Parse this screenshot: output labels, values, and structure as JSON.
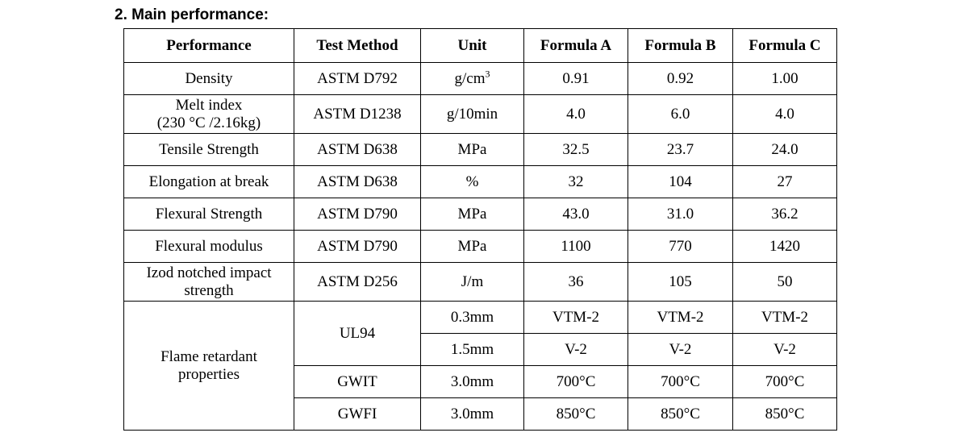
{
  "heading": "2. Main performance:",
  "columns": [
    "Performance",
    "Test Method",
    "Unit",
    "Formula A",
    "Formula B",
    "Formula C"
  ],
  "rows": [
    {
      "performance": "Density",
      "method": "ASTM D792",
      "unit": "g/cm",
      "unit_sup": "3",
      "a": "0.91",
      "b": "0.92",
      "c": "1.00"
    },
    {
      "performance_line1": "Melt index",
      "performance_line2": "(230 °C /2.16kg)",
      "method": "ASTM D1238",
      "unit": "g/10min",
      "a": "4.0",
      "b": "6.0",
      "c": "4.0"
    },
    {
      "performance": "Tensile Strength",
      "method": "ASTM D638",
      "unit": "MPa",
      "a": "32.5",
      "b": "23.7",
      "c": "24.0"
    },
    {
      "performance": "Elongation at break",
      "method": "ASTM D638",
      "unit": "%",
      "a": "32",
      "b": "104",
      "c": "27"
    },
    {
      "performance": "Flexural Strength",
      "method": "ASTM D790",
      "unit": "MPa",
      "a": "43.0",
      "b": "31.0",
      "c": "36.2"
    },
    {
      "performance": "Flexural modulus",
      "method": "ASTM D790",
      "unit": "MPa",
      "a": "1100",
      "b": "770",
      "c": "1420"
    },
    {
      "performance_line1": "Izod notched impact",
      "performance_line2": "strength",
      "method": "ASTM D256",
      "unit": "J/m",
      "a": "36",
      "b": "105",
      "c": "50"
    }
  ],
  "flame": {
    "label_line1": "Flame retardant",
    "label_line2": "properties",
    "ul94": {
      "method": "UL94",
      "rows": [
        {
          "unit": "0.3mm",
          "a": "VTM-2",
          "b": "VTM-2",
          "c": "VTM-2"
        },
        {
          "unit": "1.5mm",
          "a": "V-2",
          "b": "V-2",
          "c": "V-2"
        }
      ]
    },
    "gwit": {
      "method": "GWIT",
      "unit": "3.0mm",
      "a": "700°C",
      "b": "700°C",
      "c": "700°C"
    },
    "gwfi": {
      "method": "GWFI",
      "unit": "3.0mm",
      "a": "850°C",
      "b": "850°C",
      "c": "850°C"
    }
  }
}
